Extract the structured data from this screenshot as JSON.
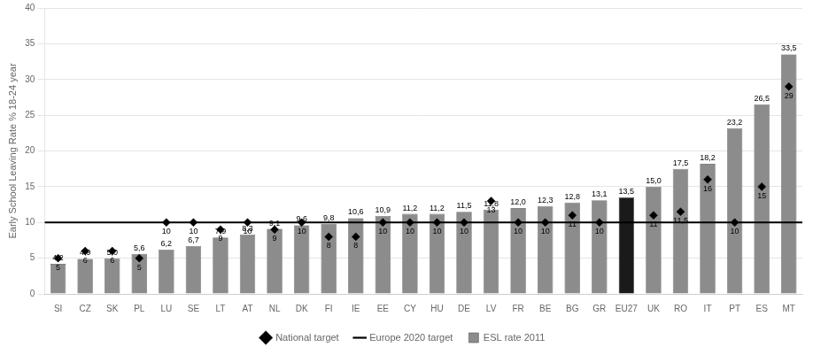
{
  "chart_data": {
    "type": "bar",
    "categories": [
      "SI",
      "CZ",
      "SK",
      "PL",
      "LU",
      "SE",
      "LT",
      "AT",
      "NL",
      "DK",
      "FI",
      "IE",
      "EE",
      "CY",
      "HU",
      "DE",
      "LV",
      "FR",
      "BE",
      "BG",
      "GR",
      "EU27",
      "UK",
      "RO",
      "IT",
      "PT",
      "ES",
      "MT"
    ],
    "ylabel": "Early School Leaving Rate % 18-24 year",
    "ylim": [
      0,
      40
    ],
    "yticks": [
      0,
      5,
      10,
      15,
      20,
      25,
      30,
      35,
      40
    ],
    "grid": true,
    "legend": "bottom",
    "data_labels": true,
    "series": [
      {
        "name": "ESL rate 2011",
        "type": "bar",
        "color": "#8c8c8c",
        "colors": [
          "#8c8c8c",
          "#8c8c8c",
          "#8c8c8c",
          "#8c8c8c",
          "#8c8c8c",
          "#8c8c8c",
          "#8c8c8c",
          "#8c8c8c",
          "#8c8c8c",
          "#8c8c8c",
          "#8c8c8c",
          "#8c8c8c",
          "#8c8c8c",
          "#8c8c8c",
          "#8c8c8c",
          "#8c8c8c",
          "#8c8c8c",
          "#8c8c8c",
          "#8c8c8c",
          "#8c8c8c",
          "#8c8c8c",
          "#1a1a1a",
          "#8c8c8c",
          "#8c8c8c",
          "#8c8c8c",
          "#8c8c8c",
          "#8c8c8c",
          "#8c8c8c"
        ],
        "values": [
          4.2,
          4.9,
          5.0,
          5.6,
          6.2,
          6.7,
          7.9,
          8.3,
          9.1,
          9.6,
          9.8,
          10.6,
          10.9,
          11.2,
          11.2,
          11.5,
          11.8,
          12.0,
          12.3,
          12.8,
          13.1,
          13.5,
          15.0,
          17.5,
          18.2,
          23.2,
          26.5,
          33.5
        ],
        "value_labels": [
          "4,2",
          "4,9",
          "5,0",
          "5,6",
          "6,2",
          "6,7",
          "7,9",
          "8,3",
          "9,1",
          "9,6",
          "9,8",
          "10,6",
          "10,9",
          "11,2",
          "11,2",
          "11,5",
          "11,8",
          "12,0",
          "12,3",
          "12,8",
          "13,1",
          "13,5",
          "15,0",
          "17,5",
          "18,2",
          "23,2",
          "26,5",
          "33,5"
        ]
      },
      {
        "name": "Europe 2020 target",
        "type": "line",
        "color": "#000000",
        "value": 10
      },
      {
        "name": "National target",
        "type": "scatter",
        "marker": "diamond",
        "color": "#000000",
        "values": [
          5,
          6,
          6,
          5,
          10,
          10,
          9,
          10,
          9,
          10,
          8,
          8,
          10,
          10,
          10,
          10,
          13,
          10,
          10,
          11,
          10,
          null,
          11,
          11.5,
          16,
          10,
          15,
          29
        ],
        "value_labels": [
          "5",
          "6",
          "6",
          "5",
          "10",
          "10",
          "9",
          "10",
          "9",
          "10",
          "8",
          "8",
          "10",
          "10",
          "10",
          "10",
          "13",
          "10",
          "10",
          "11",
          "10",
          null,
          "11",
          "11,5",
          "16",
          "10",
          "15",
          "29"
        ]
      }
    ]
  }
}
